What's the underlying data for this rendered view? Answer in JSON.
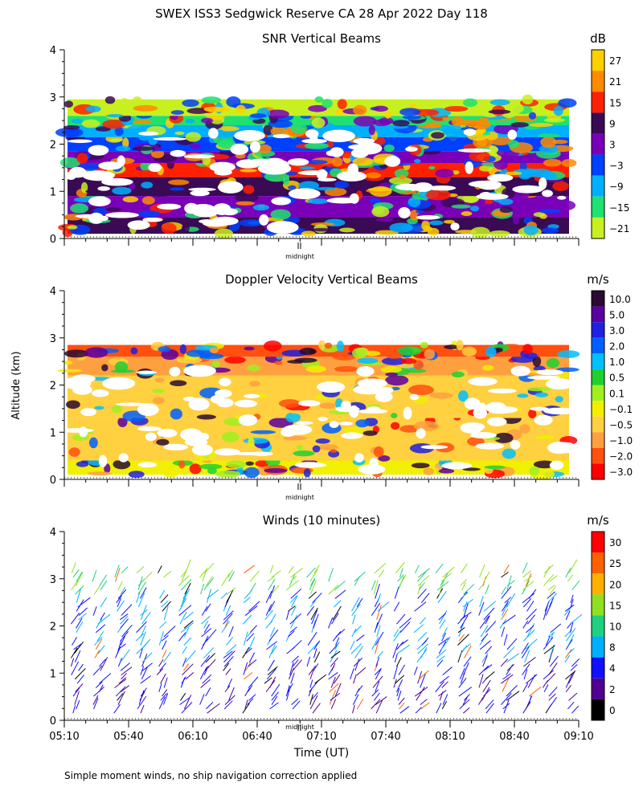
{
  "page": {
    "title": "SWEX ISS3 Sedgwick Reserve CA  28 Apr 2022 Day 118",
    "y_axis_label": "Altitude (km)",
    "x_axis_label": "Time (UT)",
    "midnight_label": "midnight",
    "footnote": "Simple moment winds, no ship navigation correction applied"
  },
  "chart_data": [
    {
      "id": "snr",
      "type": "heatmap",
      "title": "SNR Vertical Beams",
      "units": "dB",
      "ylim": [
        0,
        4
      ],
      "yticks": [
        "0",
        "1",
        "2",
        "3",
        "4"
      ],
      "colorbar": {
        "labels": [
          "27",
          "21",
          "15",
          "9",
          "3",
          "−3",
          "−9",
          "−15",
          "−21"
        ],
        "colors": [
          "#ffd000",
          "#ff8a00",
          "#ff2000",
          "#3a0a55",
          "#7a00b8",
          "#0040ff",
          "#00b0ff",
          "#20e070",
          "#c8f020"
        ]
      },
      "layers": [
        {
          "from": 0.1,
          "to": 0.45,
          "color": "#3a0a55"
        },
        {
          "from": 0.45,
          "to": 0.9,
          "color": "#7a00b8"
        },
        {
          "from": 0.9,
          "to": 1.3,
          "color": "#3a0a55"
        },
        {
          "from": 1.3,
          "to": 1.6,
          "color": "#ff2000"
        },
        {
          "from": 1.6,
          "to": 1.85,
          "color": "#7a00b8"
        },
        {
          "from": 1.85,
          "to": 2.15,
          "color": "#0040ff"
        },
        {
          "from": 2.15,
          "to": 2.4,
          "color": "#00b0ff"
        },
        {
          "from": 2.4,
          "to": 2.6,
          "color": "#20e070"
        },
        {
          "from": 2.6,
          "to": 2.95,
          "color": "#c8f020"
        }
      ]
    },
    {
      "id": "doppler",
      "type": "heatmap",
      "title": "Doppler Velocity Vertical Beams",
      "units": "m/s",
      "ylim": [
        0,
        4
      ],
      "yticks": [
        "0",
        "1",
        "2",
        "3",
        "4"
      ],
      "colorbar": {
        "labels": [
          "10.0",
          "5.0",
          "3.0",
          "2.0",
          "1.0",
          "0.5",
          "0.1",
          "−0.1",
          "−0.5",
          "−1.0",
          "−2.0",
          "−3.0"
        ],
        "colors": [
          "#2a0a30",
          "#5a00a0",
          "#2020e0",
          "#0060ff",
          "#00c0ff",
          "#20d030",
          "#a0f020",
          "#f0f000",
          "#ffd040",
          "#ffa040",
          "#ff5010",
          "#ff0000"
        ]
      },
      "layers": [
        {
          "from": 0.1,
          "to": 0.4,
          "color": "#f0f000"
        },
        {
          "from": 0.4,
          "to": 1.3,
          "color": "#ffd040"
        },
        {
          "from": 1.3,
          "to": 2.2,
          "color": "#ffd040"
        },
        {
          "from": 2.2,
          "to": 2.6,
          "color": "#ffa040"
        },
        {
          "from": 2.6,
          "to": 2.85,
          "color": "#ff5010"
        }
      ]
    },
    {
      "id": "winds",
      "type": "scatter",
      "title": "Winds (10 minutes)",
      "units": "m/s",
      "ylim": [
        0,
        4
      ],
      "yticks": [
        "0",
        "1",
        "2",
        "3",
        "4"
      ],
      "xticks": [
        "05:10",
        "05:40",
        "06:10",
        "06:40",
        "07:10",
        "07:40",
        "08:10",
        "08:40",
        "09:10"
      ],
      "colorbar": {
        "labels": [
          "30",
          "25",
          "20",
          "15",
          "10",
          "8",
          "4",
          "2",
          "0"
        ],
        "colors": [
          "#ff0000",
          "#ff6000",
          "#ffb000",
          "#90e020",
          "#20d080",
          "#00b0ff",
          "#1010ff",
          "#500090",
          "#000000"
        ]
      },
      "profile_times": [
        "05:15",
        "05:25",
        "05:35",
        "05:45",
        "05:55",
        "06:05",
        "06:15",
        "06:25",
        "06:35",
        "06:45",
        "06:55",
        "07:05",
        "07:15",
        "07:25",
        "07:35",
        "07:45",
        "07:55",
        "08:05",
        "08:15",
        "08:25",
        "08:35",
        "08:45",
        "08:55",
        "09:05"
      ]
    }
  ]
}
